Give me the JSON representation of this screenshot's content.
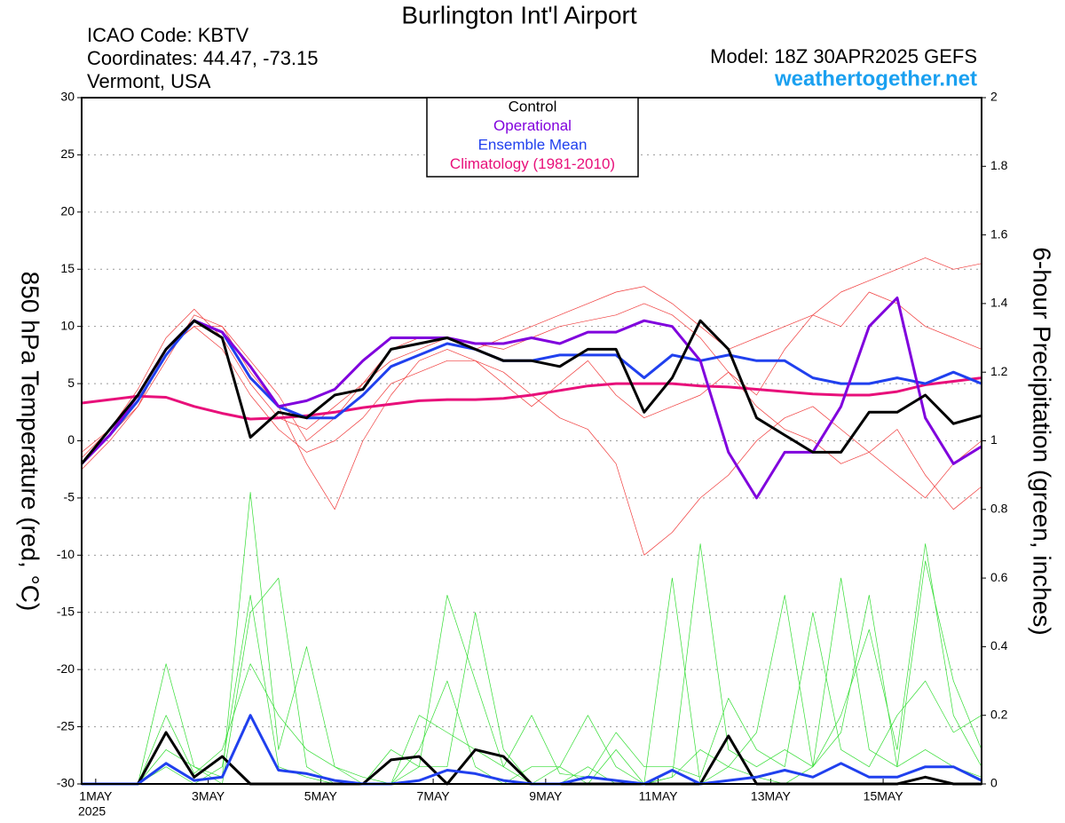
{
  "chart_data": {
    "type": "line",
    "title": "Burlington Int'l Airport",
    "info_left": [
      "ICAO Code: KBTV",
      "Coordinates: 44.47, -73.15",
      "Vermont, USA"
    ],
    "model": "Model: 18Z 30APR2025 GEFS",
    "site": "weathertogether.net",
    "ylabel": "850 hPa Temperature (red, °C)",
    "y2label": "6-hour Precipitation (green, inches)",
    "year_label": "2025",
    "xlim": [
      0.75,
      16.75
    ],
    "xticks": [
      {
        "value": 1,
        "label": "1MAY"
      },
      {
        "value": 3,
        "label": "3MAY"
      },
      {
        "value": 5,
        "label": "5MAY"
      },
      {
        "value": 7,
        "label": "7MAY"
      },
      {
        "value": 9,
        "label": "9MAY"
      },
      {
        "value": 11,
        "label": "11MAY"
      },
      {
        "value": 13,
        "label": "13MAY"
      },
      {
        "value": 15,
        "label": "15MAY"
      }
    ],
    "ylim": [
      -30,
      30
    ],
    "yticks": [
      -30,
      -25,
      -20,
      -15,
      -10,
      -5,
      0,
      5,
      10,
      15,
      20,
      25,
      30
    ],
    "y2lim": [
      0,
      2
    ],
    "y2ticks": [
      0,
      0.2,
      0.4,
      0.6,
      0.8,
      1,
      1.2,
      1.4,
      1.6,
      1.8,
      2
    ],
    "grid": true,
    "x": [
      0.75,
      1.25,
      1.75,
      2.25,
      2.75,
      3.25,
      3.75,
      4.25,
      4.75,
      5.25,
      5.75,
      6.25,
      6.75,
      7.25,
      7.75,
      8.25,
      8.75,
      9.25,
      9.75,
      10.25,
      10.75,
      11.25,
      11.75,
      12.25,
      12.75,
      13.25,
      13.75,
      14.25,
      14.75,
      15.25,
      15.75,
      16.25,
      16.75
    ],
    "series": [
      {
        "color": "#f03a3a",
        "width": 0.7,
        "values": [
          -1.5,
          1,
          4.5,
          9,
          11.5,
          9,
          5,
          2,
          1,
          3,
          5,
          7,
          8,
          9,
          8.5,
          8,
          9,
          10,
          10.5,
          11,
          12,
          11,
          9,
          6,
          4,
          8,
          11,
          10,
          13,
          12,
          10,
          9,
          8
        ]
      },
      {
        "color": "#f03a3a",
        "width": 0.7,
        "values": [
          -2.5,
          0,
          3,
          8,
          10,
          10,
          6,
          3,
          -2,
          -6,
          0,
          4,
          7,
          8,
          7,
          6,
          4,
          2,
          1,
          -2,
          -10,
          -8,
          -5,
          -3,
          0,
          2,
          3,
          1,
          -1,
          -3,
          -5,
          -2,
          0
        ]
      },
      {
        "color": "#f03a3a",
        "width": 0.7,
        "values": [
          -2,
          0.5,
          3,
          7,
          11,
          10,
          7,
          4,
          0,
          2,
          5,
          8,
          9,
          9,
          8,
          9,
          10,
          11,
          12,
          13,
          13.5,
          12,
          10,
          8,
          9,
          10,
          11,
          13,
          14,
          15,
          16,
          15,
          15.5
        ]
      },
      {
        "color": "#f03a3a",
        "width": 0.7,
        "values": [
          -1,
          1,
          4,
          8,
          10,
          8,
          4,
          1,
          -1,
          0,
          2,
          5,
          6,
          7,
          7,
          5,
          3,
          5,
          7,
          4,
          2,
          3,
          4,
          6,
          3,
          1,
          0,
          -2,
          -1,
          1,
          -3,
          -6,
          -4
        ]
      },
      {
        "color": "#33dd33",
        "width": 0.7,
        "axis": "y2",
        "values": [
          0,
          0,
          0,
          0.1,
          0.05,
          0.02,
          0.85,
          0.1,
          0.4,
          0.05,
          0,
          0,
          0.05,
          0.55,
          0.3,
          0.05,
          0,
          0.05,
          0.2,
          0.05,
          0,
          0.02,
          0.7,
          0.1,
          0.05,
          0.1,
          0.05,
          0.6,
          0.1,
          0.05,
          0.65,
          0.3,
          0.1
        ]
      },
      {
        "color": "#33dd33",
        "width": 0.7,
        "axis": "y2",
        "values": [
          0,
          0,
          0,
          0.35,
          0.05,
          0,
          0.5,
          0.6,
          0.05,
          0,
          0,
          0.1,
          0.05,
          0.05,
          0.5,
          0.1,
          0,
          0,
          0.05,
          0,
          0,
          0.6,
          0,
          0.05,
          0.15,
          0.55,
          0.05,
          0.2,
          0.45,
          0.1,
          0.7,
          0.2,
          0.05
        ]
      },
      {
        "color": "#33dd33",
        "width": 0.7,
        "axis": "y2",
        "values": [
          0,
          0,
          0,
          0.2,
          0.03,
          0.1,
          0.35,
          0.2,
          0.1,
          0.05,
          0.02,
          0,
          0.2,
          0.15,
          0.1,
          0.05,
          0.2,
          0.03,
          0.02,
          0.15,
          0.05,
          0.05,
          0.02,
          0.25,
          0.1,
          0.05,
          0.5,
          0.1,
          0.05,
          0.2,
          0.3,
          0.15,
          0.2
        ]
      },
      {
        "color": "#33dd33",
        "width": 0.7,
        "axis": "y2",
        "values": [
          0,
          0,
          0,
          0.05,
          0,
          0.05,
          0.55,
          0.05,
          0.02,
          0,
          0,
          0,
          0.1,
          0.3,
          0.05,
          0,
          0.05,
          0.05,
          0,
          0.1,
          0,
          0.02,
          0.1,
          0.05,
          0.02,
          0,
          0.05,
          0.15,
          0.55,
          0.05,
          0.1,
          0.05,
          0.02
        ]
      },
      {
        "name": "Climatology (1981-2010)",
        "color": "#e8107a",
        "width": 3,
        "values": [
          3.3,
          3.6,
          3.9,
          3.8,
          3.0,
          2.4,
          1.9,
          2.0,
          2.2,
          2.5,
          2.9,
          3.2,
          3.5,
          3.6,
          3.6,
          3.7,
          4.0,
          4.4,
          4.8,
          5.0,
          5.0,
          5.0,
          4.8,
          4.7,
          4.5,
          4.3,
          4.1,
          4.0,
          4.0,
          4.3,
          4.9,
          5.2,
          5.5
        ]
      },
      {
        "color": "#000000",
        "width": 3,
        "axis": "y2",
        "values": [
          0,
          0,
          0,
          0.15,
          0.02,
          0.08,
          0,
          0,
          0,
          0,
          0,
          0.07,
          0.08,
          0,
          0.1,
          0.08,
          0,
          0,
          0,
          0,
          0,
          0,
          0,
          0.14,
          0,
          0,
          0,
          0,
          0,
          0,
          0.02,
          0,
          0
        ]
      },
      {
        "color": "#2040ee",
        "width": 3,
        "axis": "y2",
        "values": [
          0,
          0,
          0,
          0.06,
          0.01,
          0.02,
          0.2,
          0.04,
          0.03,
          0.01,
          0,
          0,
          0.01,
          0.04,
          0.03,
          0.01,
          0,
          0,
          0.02,
          0.01,
          0,
          0.04,
          0,
          0.01,
          0.02,
          0.04,
          0.02,
          0.06,
          0.02,
          0.02,
          0.05,
          0.05,
          0.01
        ]
      },
      {
        "name": "Ensemble Mean",
        "color": "#2040ee",
        "width": 3,
        "values": [
          -2,
          0.5,
          3.5,
          7.5,
          10.5,
          9.5,
          5.5,
          3,
          2,
          2,
          4,
          6.5,
          7.5,
          8.5,
          8,
          7,
          7,
          7.5,
          7.5,
          7.5,
          5.5,
          7.5,
          7,
          7.5,
          7,
          7,
          5.5,
          5,
          5,
          5.5,
          5,
          6,
          5
        ]
      },
      {
        "name": "Operational",
        "color": "#8000dd",
        "width": 3,
        "values": [
          -2,
          0.5,
          4,
          8,
          10.5,
          9.5,
          6.5,
          3,
          3.5,
          4.5,
          7,
          9,
          9,
          9,
          8.5,
          8.5,
          9,
          8.5,
          9.5,
          9.5,
          10.5,
          10,
          7,
          -1,
          -5,
          -1,
          -1,
          3,
          10,
          12.5,
          2,
          -2,
          -0.5
        ]
      },
      {
        "name": "Control",
        "color": "#000000",
        "width": 3,
        "values": [
          -2,
          1,
          4,
          8,
          10.5,
          9,
          0.3,
          2.5,
          2,
          4,
          4.5,
          8,
          8.5,
          9,
          8,
          7,
          7,
          6.5,
          8,
          8,
          2.5,
          5.5,
          10.5,
          8,
          2,
          0.5,
          -1,
          -1,
          2.5,
          2.5,
          4,
          1.5,
          2.2
        ]
      }
    ],
    "legend_order": [
      13,
      12,
      11,
      8
    ]
  }
}
